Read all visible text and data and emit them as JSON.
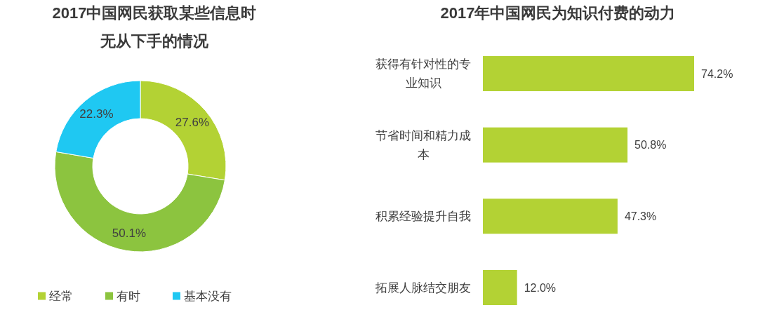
{
  "chart_data": [
    {
      "type": "donut",
      "title": "2017中国网民获取某些信息时无从下手的情况",
      "categories": [
        "经常",
        "有时",
        "基本没有"
      ],
      "values": [
        27.6,
        50.1,
        22.3
      ],
      "colors": [
        "#b3d234",
        "#8cc43f",
        "#1fc8f2"
      ],
      "value_labels": [
        "27.6%",
        "50.1%",
        "22.3%"
      ],
      "legend": "bottom"
    },
    {
      "type": "bar",
      "orientation": "horizontal",
      "title": "2017年中国网民为知识付费的动力",
      "categories": [
        "获得有针对性的专业知识",
        "节省时间和精力成本",
        "积累经验提升自我",
        "拓展人脉结交朋友"
      ],
      "values": [
        74.2,
        50.8,
        47.3,
        12.0
      ],
      "color": "#b3d234",
      "value_labels": [
        "74.2%",
        "50.8%",
        "47.3%",
        "12.0%"
      ]
    }
  ]
}
